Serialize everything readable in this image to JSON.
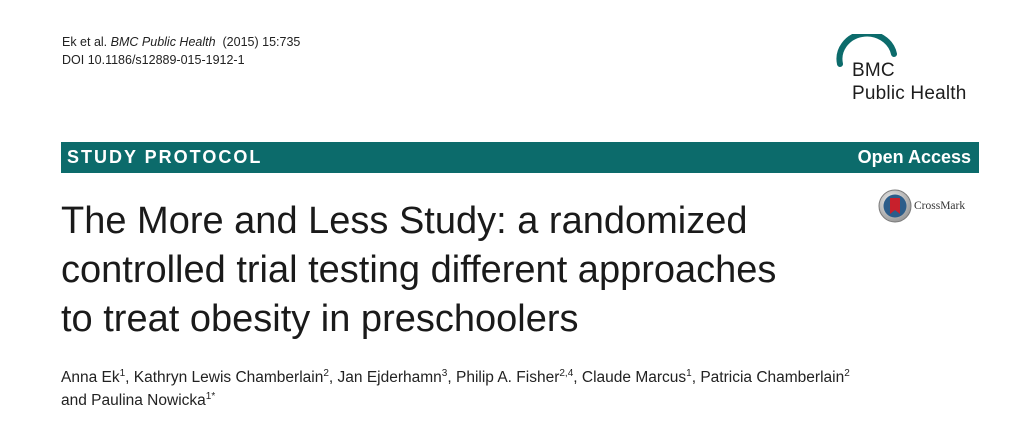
{
  "citation": {
    "authors": "Ek et al.",
    "journal": "BMC Public Health",
    "volume_info": "(2015) 15:735",
    "doi": "DOI 10.1186/s12889-015-1912-1"
  },
  "logo": {
    "line1": "BMC",
    "line2": "Public Health",
    "arc_color": "#0c6b6b"
  },
  "banner": {
    "article_type": "STUDY PROTOCOL",
    "access": "Open Access",
    "color": "#0c6b6b"
  },
  "crossmark": {
    "label": "CrossMark"
  },
  "title": {
    "line1": "The More and Less Study: a randomized",
    "line2": "controlled trial testing different approaches",
    "line3": "to treat obesity in preschoolers"
  },
  "authors": [
    {
      "name": "Anna Ek",
      "aff": "1",
      "sep": ", "
    },
    {
      "name": "Kathryn Lewis Chamberlain",
      "aff": "2",
      "sep": ", "
    },
    {
      "name": "Jan Ejderhamn",
      "aff": "3",
      "sep": ", "
    },
    {
      "name": "Philip A. Fisher",
      "aff": "2,4",
      "sep": ", "
    },
    {
      "name": "Claude Marcus",
      "aff": "1",
      "sep": ", "
    },
    {
      "name": "Patricia Chamberlain",
      "aff": "2",
      "sep": " "
    },
    {
      "name": "and Paulina Nowicka",
      "aff": "1*",
      "sep": ""
    }
  ]
}
